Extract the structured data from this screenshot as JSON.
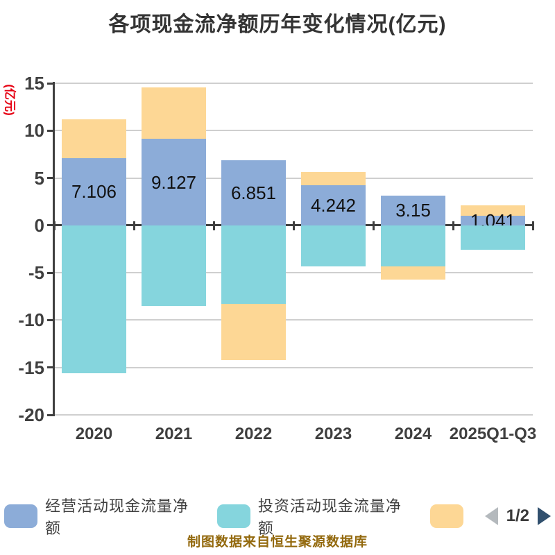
{
  "title": "各项现金流净额历年变化情况(亿元)",
  "y_axis_unit": "(亿元)",
  "footer": "制图数据来自恒生聚源数据库",
  "chart_data": {
    "type": "bar",
    "stacked": true,
    "title": "各项现金流净额历年变化情况(亿元)",
    "ylabel": "(亿元)",
    "ylim": [
      -20,
      15
    ],
    "y_ticks": [
      15,
      10,
      5,
      0,
      -5,
      -10,
      -15,
      -20
    ],
    "grid": true,
    "legend_position": "bottom",
    "categories": [
      "2020",
      "2021",
      "2022",
      "2023",
      "2024",
      "2025Q1-Q3"
    ],
    "series": [
      {
        "name": "经营活动现金流量净额",
        "color": "#8CACD8",
        "values": [
          7.106,
          9.127,
          6.851,
          4.242,
          3.15,
          1.041
        ]
      },
      {
        "name": "投资活动现金流量净额",
        "color": "#85D5DD",
        "values": [
          -15.6,
          -8.5,
          -8.3,
          -4.3,
          -4.3,
          -2.6
        ]
      },
      {
        "name": "",
        "color": "#FDD795",
        "values": [
          4.1,
          5.4,
          -5.9,
          1.4,
          -1.4,
          1.1
        ]
      }
    ],
    "bar_labels": [
      "7.106",
      "9.127",
      "6.851",
      "4.242",
      "3.15",
      "1.041"
    ]
  },
  "legend": {
    "items": [
      {
        "label": "经营活动现金流量净额",
        "color": "#8CACD8"
      },
      {
        "label": "投资活动现金流量净额",
        "color": "#85D5DD"
      },
      {
        "label": "",
        "color": "#FDD795"
      }
    ],
    "pagination": {
      "text": "1/2"
    }
  },
  "colors": {
    "title": "#333333",
    "axis": "#3F3F3F",
    "grid": "#CFCFCF",
    "unit_label": "#E60012",
    "footer": "#93690D",
    "bar_label": "#111111",
    "pager_prev": "#B4B9BD",
    "pager_next": "#31506E"
  }
}
